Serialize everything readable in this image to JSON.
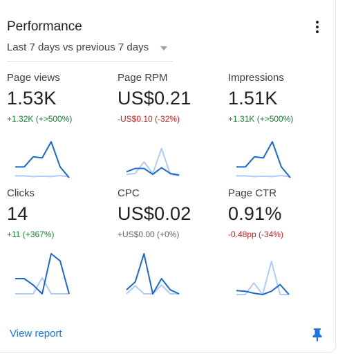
{
  "header": {
    "title": "Performance"
  },
  "period": {
    "label": "Last 7 days vs previous 7 days"
  },
  "metrics": [
    {
      "label": "Page views",
      "value": "1.53K",
      "change": "+1.32K (+>500%)"
    },
    {
      "label": "Page RPM",
      "value": "US$0.21",
      "change": "-US$0.10 (-32%)"
    },
    {
      "label": "Impressions",
      "value": "1.51K",
      "change": "+1.31K (+>500%)"
    },
    {
      "label": "Clicks",
      "value": "14",
      "change": "+11 (+367%)"
    },
    {
      "label": "CPC",
      "value": "US$0.02",
      "change": "+US$0.00 (+0%)"
    },
    {
      "label": "Page CTR",
      "value": "0.91%",
      "change": "-0.48pp (-34%)"
    }
  ],
  "footer": {
    "view_report": "View report"
  },
  "colors": {
    "current_series": "#1967d2",
    "previous_series": "#aecbfa",
    "positive": "#188038",
    "negative": "#c5221f",
    "neutral": "#5f6368",
    "link": "#1a73e8"
  },
  "sparklines": [
    {
      "current": [
        0.3,
        0.3,
        0.58,
        0.55,
        1.0,
        0.3,
        0.0
      ],
      "previous": [
        0.05,
        0.05,
        0.03,
        0.04,
        0.03,
        0.06,
        0.02
      ]
    },
    {
      "current": [
        0.2,
        0.3,
        0.3,
        0.12,
        0.32,
        0.15,
        0.1
      ],
      "previous": [
        0.12,
        0.15,
        0.5,
        0.15,
        0.9,
        0.12,
        0.08
      ]
    },
    {
      "current": [
        0.3,
        0.3,
        0.58,
        0.55,
        1.0,
        0.3,
        0.0
      ],
      "previous": [
        0.05,
        0.05,
        0.03,
        0.04,
        0.03,
        0.06,
        0.02
      ]
    },
    {
      "current": [
        0.38,
        0.38,
        0.22,
        0.0,
        1.0,
        0.82,
        0.0
      ],
      "previous": [
        0.0,
        0.0,
        0.0,
        0.4,
        0.0,
        0.0,
        0.0
      ]
    },
    {
      "current": [
        0.1,
        0.3,
        1.0,
        0.0,
        0.38,
        0.1,
        0.0
      ],
      "previous": [
        0.0,
        0.2,
        0.0,
        0.0,
        0.22,
        0.0,
        0.0
      ]
    },
    {
      "current": [
        0.12,
        0.1,
        0.04,
        0.0,
        0.1,
        0.3,
        0.0
      ],
      "previous": [
        0.0,
        0.0,
        0.35,
        0.0,
        1.0,
        0.0,
        0.0
      ]
    }
  ]
}
